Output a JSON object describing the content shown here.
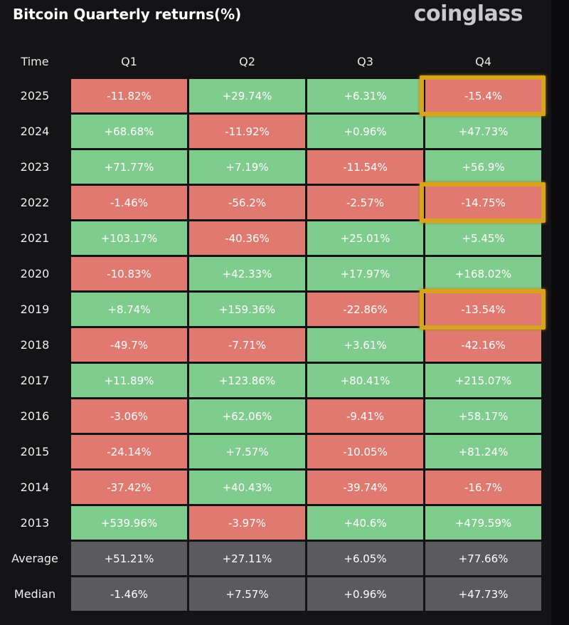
{
  "header": {
    "title": "Bitcoin Quarterly returns(%)",
    "logo": "coinglass"
  },
  "table": {
    "columns": [
      "Time",
      "Q1",
      "Q2",
      "Q3",
      "Q4"
    ],
    "rows": [
      [
        "2025",
        "-11.82%",
        "+29.74%",
        "+6.31%",
        "-15.4%"
      ],
      [
        "2024",
        "+68.68%",
        "-11.92%",
        "+0.96%",
        "+47.73%"
      ],
      [
        "2023",
        "+71.77%",
        "+7.19%",
        "-11.54%",
        "+56.9%"
      ],
      [
        "2022",
        "-1.46%",
        "-56.2%",
        "-2.57%",
        "-14.75%"
      ],
      [
        "2021",
        "+103.17%",
        "-40.36%",
        "+25.01%",
        "+5.45%"
      ],
      [
        "2020",
        "-10.83%",
        "+42.33%",
        "+17.97%",
        "+168.02%"
      ],
      [
        "2019",
        "+8.74%",
        "+159.36%",
        "-22.86%",
        "-13.54%"
      ],
      [
        "2018",
        "-49.7%",
        "-7.71%",
        "+3.61%",
        "-42.16%"
      ],
      [
        "2017",
        "+11.89%",
        "+123.86%",
        "+80.41%",
        "+215.07%"
      ],
      [
        "2016",
        "-3.06%",
        "+62.06%",
        "-9.41%",
        "+58.17%"
      ],
      [
        "2015",
        "-24.14%",
        "+7.57%",
        "-10.05%",
        "+81.24%"
      ],
      [
        "2014",
        "-37.42%",
        "+40.43%",
        "-39.74%",
        "-16.7%"
      ],
      [
        "2013",
        "+539.96%",
        "-3.97%",
        "+40.6%",
        "+479.59%"
      ]
    ],
    "summary": [
      [
        "Average",
        "+51.21%",
        "+27.11%",
        "+6.05%",
        "+77.66%"
      ],
      [
        "Median",
        "-1.46%",
        "+7.57%",
        "+0.96%",
        "+47.73%"
      ]
    ]
  }
}
